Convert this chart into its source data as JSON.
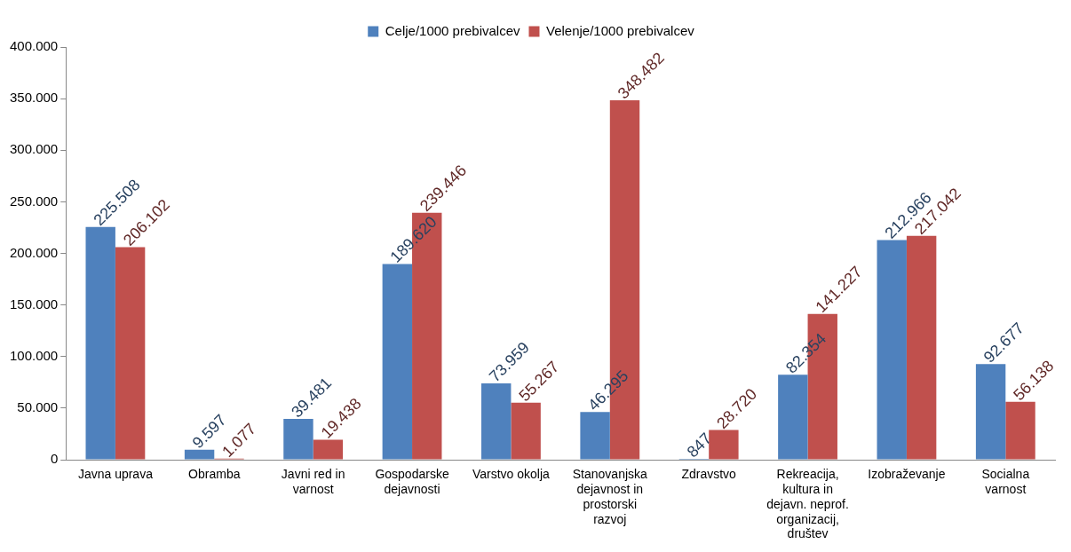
{
  "chart_data": {
    "type": "bar",
    "categories": [
      "Javna uprava",
      "Obramba",
      "Javni red in varnost",
      "Gospodarske dejavnosti",
      "Varstvo okolja",
      "Stanovanjska dejavnost in prostorski razvoj",
      "Zdravstvo",
      "Rekreacija, kultura in dejavn. neprof. organizacij, društev",
      "Izobraževanje",
      "Socialna varnost"
    ],
    "series": [
      {
        "name": "Celje/1000 prebivalcev",
        "color": "#4f81bd",
        "values": [
          225508,
          9597,
          39481,
          189620,
          73959,
          46295,
          847,
          82354,
          212966,
          92677
        ],
        "value_labels": [
          "225.508",
          "9.597",
          "39.481",
          "189.620",
          "73.959",
          "46.295",
          "847",
          "82.354",
          "212.966",
          "92.677"
        ]
      },
      {
        "name": "Velenje/1000 prebivalcev",
        "color": "#c0504d",
        "values": [
          206102,
          1077,
          19438,
          239446,
          55267,
          348482,
          28720,
          141227,
          217042,
          56138
        ],
        "value_labels": [
          "206.102",
          "1.077",
          "19.438",
          "239.446",
          "55.267",
          "348.482",
          "28.720",
          "141.227",
          "217.042",
          "56.138"
        ]
      }
    ],
    "ylim": [
      0,
      400000
    ],
    "yticks": [
      {
        "value": 0,
        "label": "0"
      },
      {
        "value": 50000,
        "label": "50.000"
      },
      {
        "value": 100000,
        "label": "100.000"
      },
      {
        "value": 150000,
        "label": "150.000"
      },
      {
        "value": 200000,
        "label": "200.000"
      },
      {
        "value": 250000,
        "label": "250.000"
      },
      {
        "value": 300000,
        "label": "300.000"
      },
      {
        "value": 350000,
        "label": "350.000"
      },
      {
        "value": 400000,
        "label": "400.000"
      }
    ],
    "grid": false,
    "legend": "top"
  }
}
